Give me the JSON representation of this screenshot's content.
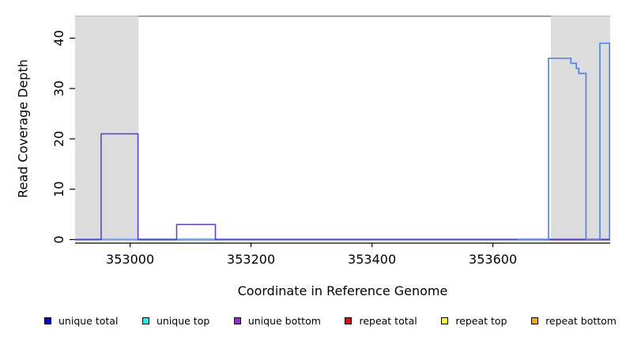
{
  "chart_data": {
    "type": "line",
    "title": "",
    "xlabel": "Coordinate in Reference Genome",
    "ylabel": "Read Coverage Depth",
    "xlim": [
      352909,
      353794
    ],
    "ylim": [
      -0.7,
      44.2
    ],
    "xticks": [
      353000,
      353200,
      353400,
      353600
    ],
    "yticks": [
      0,
      10,
      20,
      30,
      40
    ],
    "grid": false,
    "legend_position": "bottom",
    "shade_color": "#dcdcdc",
    "shaded_regions": [
      [
        352909,
        353014
      ],
      [
        353696,
        353794
      ]
    ],
    "top_rules": [
      {
        "x0": 352909,
        "x1": 353014,
        "color": "#bababa"
      },
      {
        "x0": 353014,
        "x1": 353696,
        "color": "#7d7d7d"
      },
      {
        "x0": 353696,
        "x1": 353794,
        "color": "#bababa"
      }
    ],
    "series": [
      {
        "id": "unique-top-baseline",
        "name": "unique top",
        "color": "#55b555",
        "width": 2.4,
        "points": [
          [
            353014,
            0
          ],
          [
            353141,
            0
          ]
        ]
      },
      {
        "id": "repeat-total-baseline",
        "name": "repeat total",
        "color": "#e03434",
        "width": 2.4,
        "points": [
          [
            353694,
            0
          ],
          [
            353792,
            0
          ]
        ]
      },
      {
        "id": "unique-total-baseline",
        "name": "unique total",
        "color": "#7b9bf2",
        "width": 2.6,
        "points": [
          [
            352909,
            0
          ],
          [
            353794,
            0
          ]
        ]
      },
      {
        "id": "unique-bottom",
        "name": "unique bottom",
        "color": "#5a35ec",
        "width": 1.5,
        "points": [
          [
            352909,
            0
          ],
          [
            352952,
            0
          ],
          [
            352952,
            21
          ],
          [
            353013,
            21
          ],
          [
            353013,
            0
          ],
          [
            353077,
            0
          ],
          [
            353077,
            3
          ],
          [
            353141,
            3
          ],
          [
            353141,
            0
          ],
          [
            353794,
            0
          ]
        ]
      },
      {
        "id": "unique-total",
        "name": "unique total",
        "color": "#4d86f0",
        "width": 1.7,
        "points": [
          [
            353640,
            0
          ],
          [
            353692,
            0
          ],
          [
            353692,
            36
          ],
          [
            353729,
            36
          ],
          [
            353729,
            35
          ],
          [
            353738,
            35
          ],
          [
            353738,
            34
          ],
          [
            353742,
            34
          ],
          [
            353742,
            33
          ],
          [
            353754,
            33
          ],
          [
            353754,
            0
          ],
          [
            353777,
            0
          ],
          [
            353777,
            39
          ],
          [
            353793,
            39
          ],
          [
            353793,
            0
          ]
        ]
      }
    ],
    "legend": {
      "items": [
        {
          "label": "unique total",
          "color": "#0000ff"
        },
        {
          "label": "unique top",
          "color": "#00ffff"
        },
        {
          "label": "unique bottom",
          "color": "#a020f0"
        },
        {
          "label": "repeat total",
          "color": "#ff0000"
        },
        {
          "label": "repeat top",
          "color": "#ffff00"
        },
        {
          "label": "repeat bottom",
          "color": "#ffa500"
        }
      ]
    }
  }
}
